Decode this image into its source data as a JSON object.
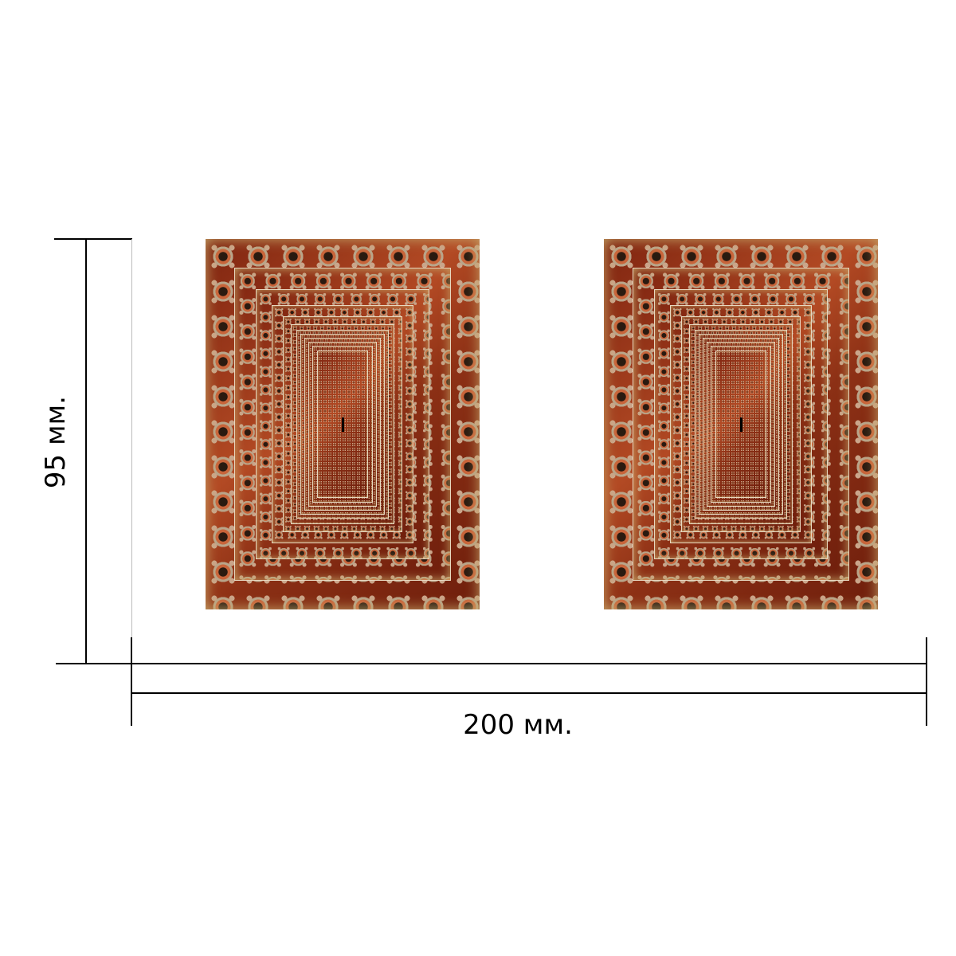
{
  "dimensions": {
    "width_label": "200 мм.",
    "height_label": "95 мм."
  },
  "panels": [
    {
      "pattern": "nested-scalloped-frames",
      "colors": [
        "#8a2a10",
        "#c8643a",
        "#b9a58a",
        "#c7a86a",
        "#2a1a10"
      ]
    },
    {
      "pattern": "nested-scalloped-frames",
      "colors": [
        "#8a2a10",
        "#c8643a",
        "#b9a58a",
        "#c7a86a",
        "#2a1a10"
      ]
    }
  ]
}
